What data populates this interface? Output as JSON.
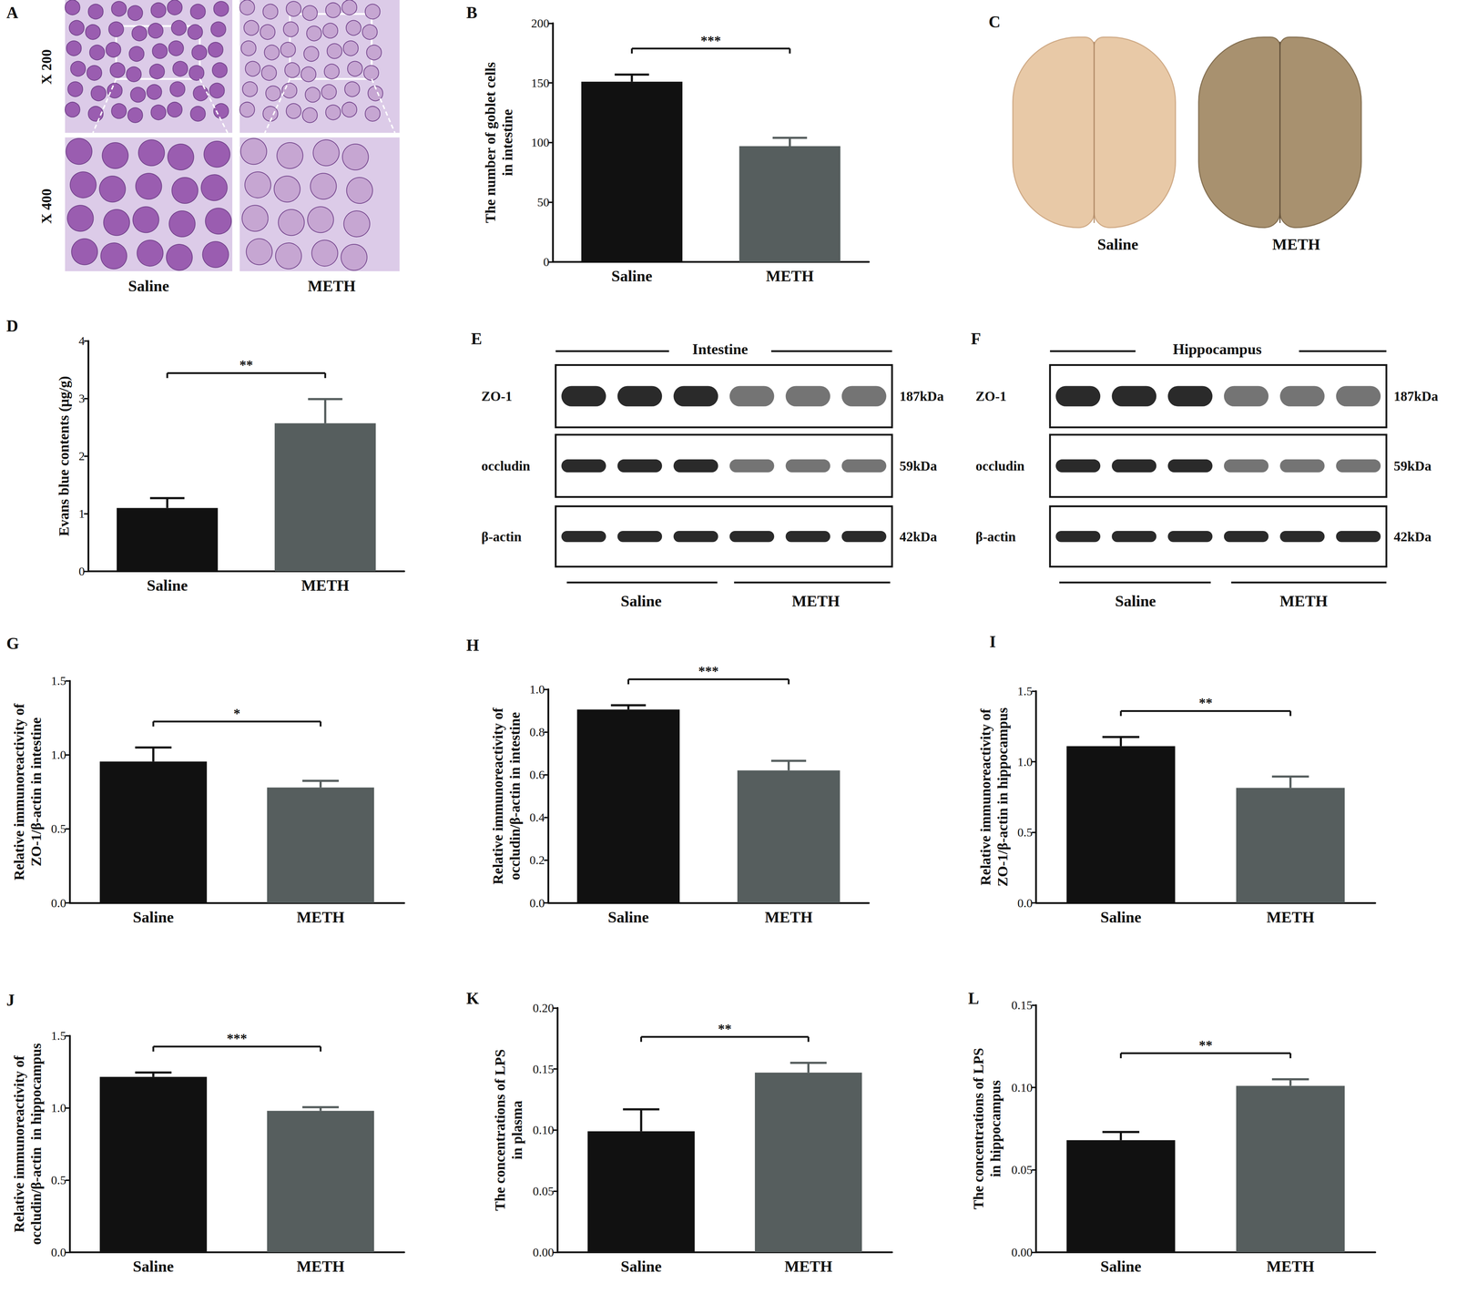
{
  "panels": {
    "A": {
      "label": "A",
      "row_labels": [
        "X 200",
        "X 400"
      ],
      "columns": [
        "Saline",
        "METH"
      ]
    },
    "C": {
      "label": "C",
      "columns": [
        "Saline",
        "METH"
      ]
    },
    "E": {
      "label": "E",
      "title": "Intestine",
      "rows": [
        {
          "name": "ZO-1",
          "size": "187kDa"
        },
        {
          "name": "occludin",
          "size": "59kDa"
        },
        {
          "name": "β-actin",
          "size": "42kDa"
        }
      ],
      "groups": [
        "Saline",
        "METH"
      ]
    },
    "F": {
      "label": "F",
      "title": "Hippocampus",
      "rows": [
        {
          "name": "ZO-1",
          "size": "187kDa"
        },
        {
          "name": "occludin",
          "size": "59kDa"
        },
        {
          "name": "β-actin",
          "size": "42kDa"
        }
      ],
      "groups": [
        "Saline",
        "METH"
      ]
    }
  },
  "chart_data": [
    {
      "type": "bar",
      "title": "B",
      "ylabel": "The number of goblet cells\nin intestine",
      "categories": [
        "Saline",
        "METH"
      ],
      "values": [
        151,
        97
      ],
      "errors": [
        6,
        7
      ],
      "colors": [
        "#111111",
        "#565e5e"
      ],
      "ylim": [
        0,
        200
      ],
      "yticks": [
        0,
        50,
        100,
        150,
        200
      ],
      "annotation": "***",
      "grid": false
    },
    {
      "type": "bar",
      "title": "D",
      "ylabel": "Evans blue contents (μg/g)",
      "categories": [
        "Saline",
        "METH"
      ],
      "values": [
        1.1,
        2.57
      ],
      "errors": [
        0.17,
        0.42
      ],
      "colors": [
        "#111111",
        "#565e5e"
      ],
      "ylim": [
        0,
        4
      ],
      "yticks": [
        0,
        1,
        2,
        3,
        4
      ],
      "annotation": "**",
      "grid": false
    },
    {
      "type": "bar",
      "title": "G",
      "ylabel": "Relative immunoreactivity of\nZO-1/β-actin in intestine",
      "categories": [
        "Saline",
        "METH"
      ],
      "values": [
        0.955,
        0.78
      ],
      "errors": [
        0.095,
        0.045
      ],
      "colors": [
        "#111111",
        "#565e5e"
      ],
      "ylim": [
        0,
        1.5
      ],
      "yticks": [
        {
          "value": 0,
          "label": "0.0"
        },
        {
          "value": 0.5,
          "label": "0.5"
        },
        {
          "value": 1,
          "label": "1.0"
        },
        {
          "value": 1.5,
          "label": "1.5"
        }
      ],
      "annotation": "*",
      "grid": false
    },
    {
      "type": "bar",
      "title": "H",
      "ylabel": "Relative immunoreactivity of\noccludin/β-actin in intestine",
      "categories": [
        "Saline",
        "METH"
      ],
      "values": [
        0.905,
        0.62
      ],
      "errors": [
        0.02,
        0.045
      ],
      "colors": [
        "#111111",
        "#565e5e"
      ],
      "ylim": [
        0,
        1
      ],
      "yticks": [
        {
          "value": 0,
          "label": "0.0"
        },
        {
          "value": 0.2,
          "label": "0.2"
        },
        {
          "value": 0.4,
          "label": "0.4"
        },
        {
          "value": 0.6,
          "label": "0.6"
        },
        {
          "value": 0.8,
          "label": "0.8"
        },
        {
          "value": 1,
          "label": "1.0"
        }
      ],
      "annotation": "***",
      "grid": false
    },
    {
      "type": "bar",
      "title": "I",
      "ylabel": "Relative immunoreactivity of\nZO-1/β-actin in hippocampus",
      "categories": [
        "Saline",
        "METH"
      ],
      "values": [
        1.11,
        0.815
      ],
      "errors": [
        0.065,
        0.08
      ],
      "colors": [
        "#111111",
        "#565e5e"
      ],
      "ylim": [
        0,
        1.5
      ],
      "yticks": [
        {
          "value": 0,
          "label": "0.0"
        },
        {
          "value": 0.5,
          "label": "0.5"
        },
        {
          "value": 1,
          "label": "1.0"
        },
        {
          "value": 1.5,
          "label": "1.5"
        }
      ],
      "annotation": "**",
      "grid": false
    },
    {
      "type": "bar",
      "title": "J",
      "ylabel": "Relative immunoreactivity of\noccludin/β-actin  in hippocampus",
      "categories": [
        "Saline",
        "METH"
      ],
      "values": [
        1.215,
        0.98
      ],
      "errors": [
        0.03,
        0.025
      ],
      "colors": [
        "#111111",
        "#565e5e"
      ],
      "ylim": [
        0,
        1.5
      ],
      "yticks": [
        {
          "value": 0,
          "label": "0.0"
        },
        {
          "value": 0.5,
          "label": "0.5"
        },
        {
          "value": 1,
          "label": "1.0"
        },
        {
          "value": 1.5,
          "label": "1.5"
        }
      ],
      "annotation": "***",
      "grid": false
    },
    {
      "type": "bar",
      "title": "K",
      "ylabel": "The concentrations of LPS\nin plasma",
      "categories": [
        "Saline",
        "METH"
      ],
      "values": [
        0.099,
        0.147
      ],
      "errors": [
        0.018,
        0.008
      ],
      "colors": [
        "#111111",
        "#565e5e"
      ],
      "ylim": [
        0,
        0.2
      ],
      "yticks": [
        {
          "value": 0,
          "label": "0.00"
        },
        {
          "value": 0.05,
          "label": "0.05"
        },
        {
          "value": 0.1,
          "label": "0.10"
        },
        {
          "value": 0.15,
          "label": "0.15"
        },
        {
          "value": 0.2,
          "label": "0.20"
        }
      ],
      "annotation": "**",
      "grid": false
    },
    {
      "type": "bar",
      "title": "L",
      "ylabel": "The concentrations of LPS\nin hippocampus",
      "categories": [
        "Saline",
        "METH"
      ],
      "values": [
        0.068,
        0.101
      ],
      "errors": [
        0.005,
        0.004
      ],
      "colors": [
        "#111111",
        "#565e5e"
      ],
      "ylim": [
        0,
        0.15
      ],
      "yticks": [
        {
          "value": 0,
          "label": "0.00"
        },
        {
          "value": 0.05,
          "label": "0.05"
        },
        {
          "value": 0.1,
          "label": "0.10"
        },
        {
          "value": 0.15,
          "label": "0.15"
        }
      ],
      "annotation": "**",
      "grid": false
    }
  ]
}
